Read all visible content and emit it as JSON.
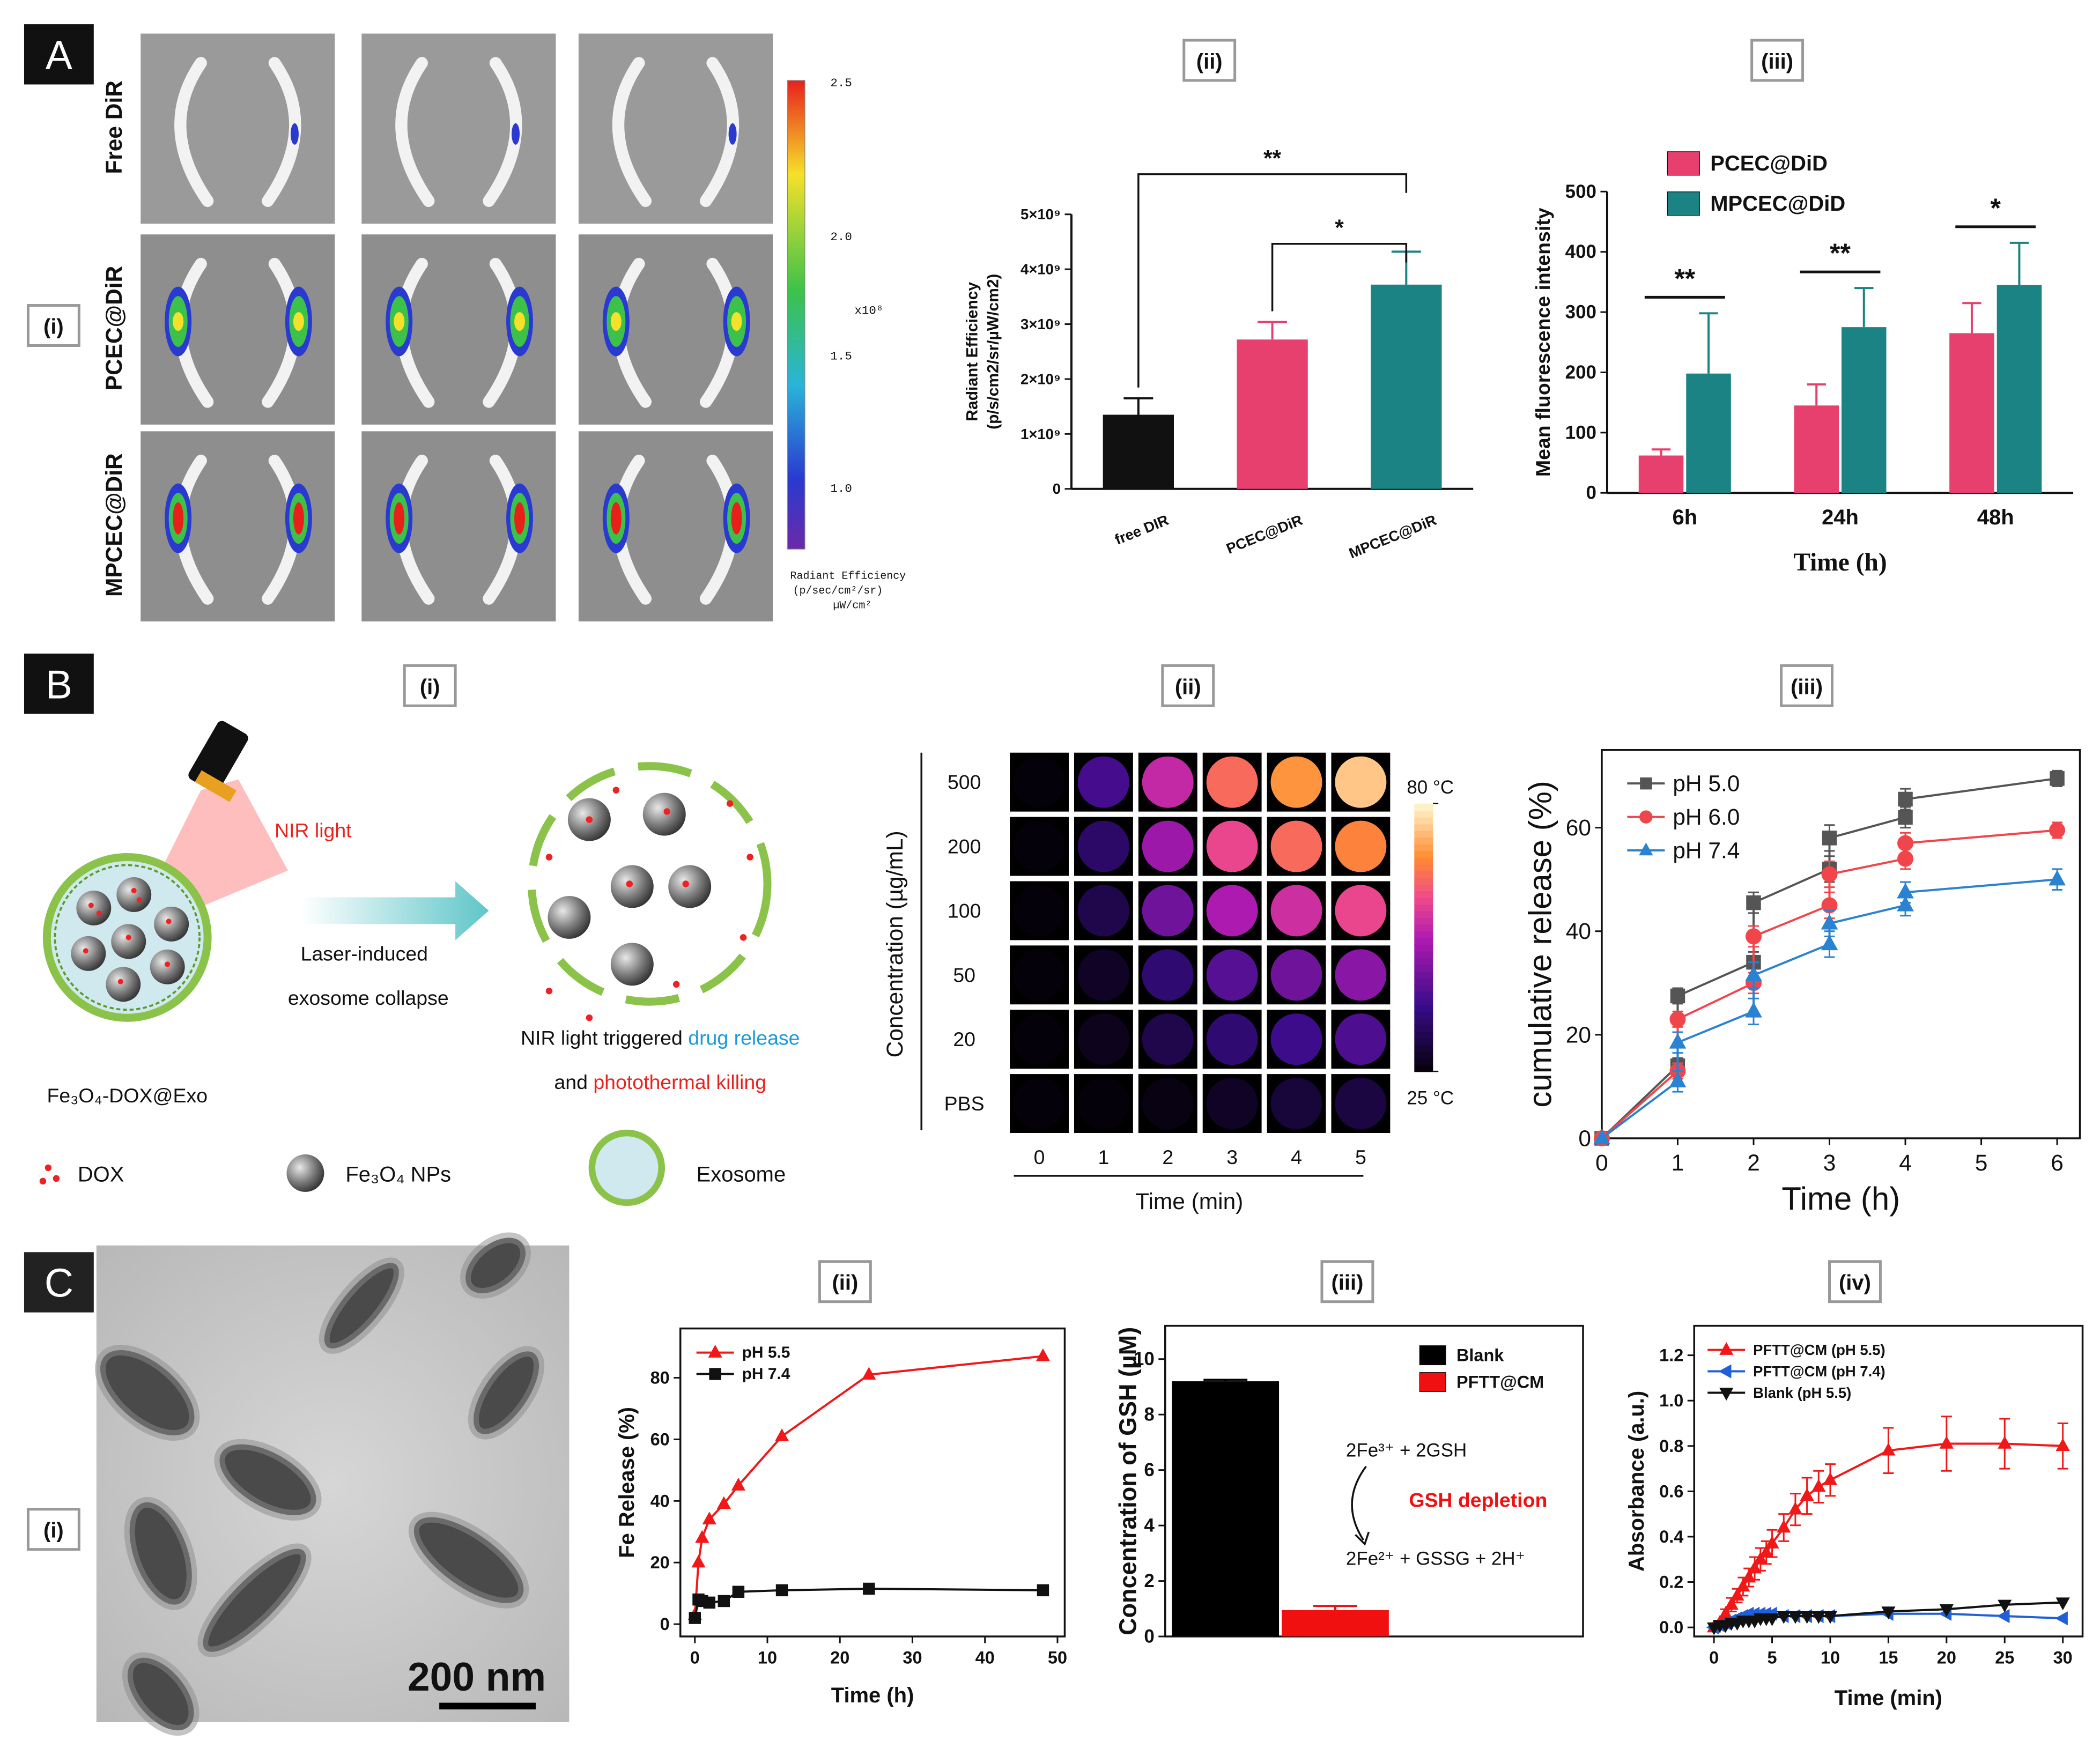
{
  "figure": {
    "A": {
      "label": "A",
      "tags": [
        "(i)",
        "(ii)",
        "(iii)"
      ],
      "rows": [
        "Free DiR",
        "PCEC@DiR",
        "MPCEC@DiR"
      ],
      "colorbar_ticks": [
        "2.5",
        "2.0",
        "1.5",
        "1.0"
      ],
      "colorbar_unit": "x10⁸",
      "colorbar_title": [
        "Radiant Efficiency",
        "(p/sec/cm²/sr)",
        "µW/cm²"
      ]
    },
    "B": {
      "label": "B",
      "tags": [
        "(i)",
        "(ii)",
        "(iii)"
      ],
      "schematic": {
        "nir": "NIR light",
        "laser": [
          "Laser-induced",
          "exosome collapse"
        ],
        "exo_name": "Fe₃O₄-DOX@Exo",
        "caption1": [
          "NIR light triggered ",
          "drug release"
        ],
        "caption2": [
          "and ",
          "photothermal killing"
        ],
        "legend": [
          "DOX",
          "Fe₃O₄ NPs",
          "Exosome"
        ]
      }
    },
    "C": {
      "label": "C",
      "tags": [
        "(i)",
        "(ii)",
        "(iii)",
        "(iv)"
      ],
      "scale_bar": "200 nm"
    }
  },
  "chart_data": [
    {
      "type": "bar",
      "categories": [
        "free DIR",
        "PCEC@DiR",
        "MPCEC@DiR"
      ],
      "colors": [
        "#111111",
        "#e8406e",
        "#1b8383"
      ],
      "series": [
        {
          "values": [
            1350000000,
            2720000000,
            3720000000
          ],
          "errors": [
            300000000,
            320000000,
            600000000
          ]
        }
      ],
      "ylim": [
        0,
        5000000000
      ],
      "yticks": [
        0,
        {
          "value": 1000000000,
          "label": "1×10⁹"
        },
        {
          "value": 2000000000,
          "label": "2×10⁹"
        },
        {
          "value": 3000000000,
          "label": "3×10⁹"
        },
        {
          "value": 4000000000,
          "label": "4×10⁹"
        },
        {
          "value": 5000000000,
          "label": "5×10⁹"
        }
      ],
      "ylabel": [
        "Radiant Efficiency",
        "(p/s/cm2/sr/µW/cm2)"
      ],
      "annotations": [
        "**",
        "*"
      ]
    },
    {
      "type": "bar",
      "categories": [
        "6h",
        "24h",
        "48h"
      ],
      "series": [
        {
          "name": "PCEC@DiD",
          "color": "#e8406e",
          "values": [
            62,
            145,
            265
          ],
          "errors": [
            10,
            35,
            50
          ]
        },
        {
          "name": "MPCEC@DiD",
          "color": "#1b8383",
          "values": [
            198,
            275,
            345
          ],
          "errors": [
            100,
            65,
            70
          ]
        }
      ],
      "ylim": [
        0,
        500
      ],
      "yticks": [
        0,
        100,
        200,
        300,
        400,
        500
      ],
      "xlabel": "Time (h)",
      "ylabel": "Mean fluorescence intensity",
      "legend": "upper left",
      "annotations": [
        "**",
        "**",
        "*"
      ]
    },
    {
      "type": "heatmap",
      "x": [
        0,
        1,
        2,
        3,
        4,
        5
      ],
      "y_categories": [
        "500",
        "200",
        "100",
        "50",
        "20",
        "PBS"
      ],
      "values": [
        [
          25,
          40,
          55,
          65,
          70,
          75
        ],
        [
          25,
          35,
          50,
          60,
          65,
          68
        ],
        [
          25,
          32,
          45,
          52,
          56,
          60
        ],
        [
          25,
          28,
          36,
          42,
          45,
          48
        ],
        [
          25,
          27,
          32,
          36,
          39,
          41
        ],
        [
          25,
          25,
          26,
          28,
          30,
          31
        ]
      ],
      "clim": [
        25,
        80
      ],
      "cticks": [
        {
          "value": 80,
          "label": "80 °C"
        },
        {
          "value": 25,
          "label": "25 °C"
        }
      ],
      "xlabel": "Time (min)",
      "ylabel": "Concentration (µg/mL)"
    },
    {
      "type": "line",
      "x": [
        0,
        1,
        1,
        2,
        2,
        3,
        3,
        4,
        4,
        6
      ],
      "series": [
        {
          "name": "pH 5.0",
          "color": "#555555",
          "marker": "square",
          "values": [
            0,
            14,
            27.5,
            34,
            45.5,
            52,
            58,
            62,
            65.5,
            69.5
          ],
          "errors": [
            0,
            1.5,
            1.5,
            2,
            2,
            2.5,
            2.5,
            2,
            2,
            1.5
          ]
        },
        {
          "name": "pH 6.0",
          "color": "#f0454a",
          "marker": "circle",
          "values": [
            0,
            13,
            23,
            30,
            39,
            45,
            51,
            54,
            57,
            59.5
          ],
          "errors": [
            0,
            1.5,
            1.5,
            2,
            2,
            2.5,
            2.5,
            2,
            2,
            1.5
          ]
        },
        {
          "name": "pH 7.4",
          "color": "#2a82d0",
          "marker": "triangle",
          "values": [
            0,
            11,
            18.5,
            24.5,
            31.5,
            37.5,
            41.5,
            45,
            47.5,
            50
          ],
          "errors": [
            0,
            2,
            2,
            2.5,
            2.5,
            2.5,
            2.5,
            2,
            2,
            2
          ]
        }
      ],
      "xlim": [
        0,
        6.3
      ],
      "ylim": [
        0,
        75
      ],
      "xticks": [
        0,
        1,
        2,
        3,
        4,
        5,
        6
      ],
      "yticks": [
        0,
        20,
        40,
        60
      ],
      "xlabel": "Time (h)",
      "ylabel": "cumulative release (%)",
      "legend": "upper left"
    },
    {
      "type": "line",
      "x": [
        0,
        0.5,
        1,
        2,
        4,
        6,
        12,
        24,
        48
      ],
      "series": [
        {
          "name": "pH 5.5",
          "color": "#f01818",
          "marker": "triangle",
          "values": [
            3,
            20,
            28,
            34,
            39,
            45,
            61,
            81,
            87
          ]
        },
        {
          "name": "pH 7.4",
          "color": "#111111",
          "marker": "square",
          "values": [
            2,
            8,
            7.5,
            7,
            7.5,
            10.5,
            11,
            11.5,
            11
          ]
        }
      ],
      "xlim": [
        -2,
        51
      ],
      "ylim": [
        -4,
        96
      ],
      "xticks": [
        0,
        10,
        20,
        30,
        40,
        50
      ],
      "yticks": [
        0,
        20,
        40,
        60,
        80
      ],
      "xlabel": "Time (h)",
      "ylabel": "Fe Release (%)",
      "legend": "upper left"
    },
    {
      "type": "bar",
      "categories": [
        null
      ],
      "series": [
        {
          "name": "Blank",
          "color": "#000000",
          "values": [
            9.2
          ],
          "errors": [
            0.05
          ]
        },
        {
          "name": "PFTT@CM",
          "color": "#f01010",
          "values": [
            0.95
          ],
          "errors": [
            0.15
          ]
        }
      ],
      "ylim": [
        0,
        11.2
      ],
      "yticks": [
        0,
        2,
        4,
        6,
        8,
        10
      ],
      "ylabel": "Concentration of GSH (µM)",
      "legend": "upper right",
      "annotations": [
        "2Fe³⁺ + 2GSH",
        "GSH depletion",
        "2Fe²⁺ + GSSG + 2H⁺"
      ]
    },
    {
      "type": "line",
      "x": [
        0,
        0.5,
        1,
        1.5,
        2,
        2.5,
        3,
        3.5,
        4,
        4.5,
        5,
        6,
        7,
        8,
        9,
        10,
        15,
        20,
        25,
        30
      ],
      "series": [
        {
          "name": "PFTT@CM (pH 5.5)",
          "color": "#f01818",
          "marker": "triangle",
          "values": [
            0,
            0.02,
            0.06,
            0.1,
            0.14,
            0.18,
            0.22,
            0.26,
            0.3,
            0.33,
            0.37,
            0.44,
            0.52,
            0.58,
            0.62,
            0.65,
            0.78,
            0.81,
            0.81,
            0.8
          ],
          "errors": [
            0,
            0.01,
            0.02,
            0.03,
            0.03,
            0.04,
            0.04,
            0.05,
            0.05,
            0.05,
            0.06,
            0.06,
            0.07,
            0.08,
            0.07,
            0.07,
            0.1,
            0.12,
            0.11,
            0.1
          ]
        },
        {
          "name": "PFTT@CM (pH 7.4)",
          "color": "#1f5fd8",
          "marker": "triangle-left",
          "values": [
            0,
            0.01,
            0.02,
            0.03,
            0.04,
            0.05,
            0.06,
            0.06,
            0.06,
            0.06,
            0.06,
            0.05,
            0.05,
            0.05,
            0.05,
            0.05,
            0.06,
            0.06,
            0.05,
            0.04
          ]
        },
        {
          "name": "Blank (pH 5.5)",
          "color": "#111111",
          "marker": "triangle-down",
          "values": [
            0,
            0.01,
            0.01,
            0.02,
            0.02,
            0.03,
            0.03,
            0.03,
            0.04,
            0.04,
            0.04,
            0.05,
            0.05,
            0.05,
            0.05,
            0.05,
            0.07,
            0.08,
            0.1,
            0.11
          ]
        }
      ],
      "xlim": [
        -1.7,
        31.7
      ],
      "ylim": [
        -0.04,
        1.33
      ],
      "xticks": [
        0,
        5,
        10,
        15,
        20,
        25,
        30
      ],
      "yticks": [
        {
          "value": 0,
          "label": "0.0"
        },
        {
          "value": 0.2,
          "label": "0.2"
        },
        {
          "value": 0.4,
          "label": "0.4"
        },
        {
          "value": 0.6,
          "label": "0.6"
        },
        {
          "value": 0.8,
          "label": "0.8"
        },
        {
          "value": 1,
          "label": "1.0"
        },
        {
          "value": 1.2,
          "label": "1.2"
        }
      ],
      "xlabel": "Time (min)",
      "ylabel": "Absorbance (a.u.)",
      "legend": "upper left"
    }
  ]
}
